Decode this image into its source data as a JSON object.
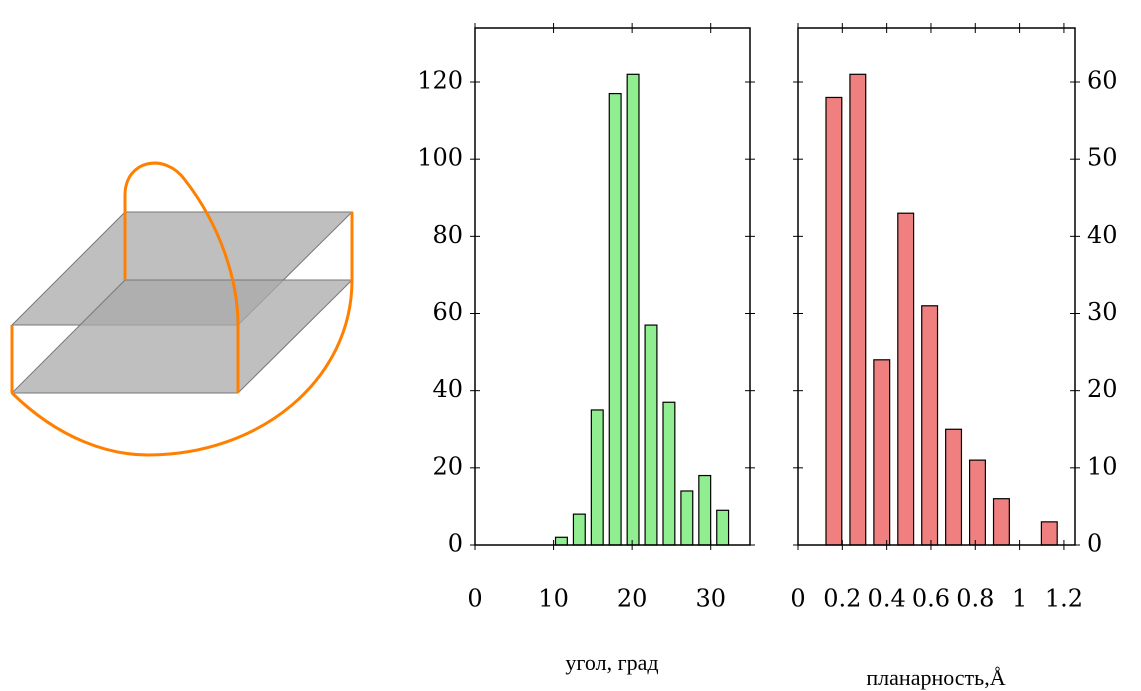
{
  "chart_data": [
    {
      "type": "histogram",
      "x_label": "угол, град",
      "bins": [
        9.86,
        12.14,
        14.42,
        16.7,
        18.98,
        21.26,
        23.54,
        25.82,
        28.1,
        30.38,
        32.66
      ],
      "values": [
        2,
        8,
        35,
        117,
        122,
        57,
        37,
        14,
        18,
        9
      ],
      "color": "#90ee90",
      "xlim": [
        0,
        35
      ],
      "ylim": [
        0,
        134
      ],
      "xticks": [
        0,
        10,
        20,
        30
      ],
      "yticks": [
        0,
        20,
        40,
        60,
        80,
        100,
        120
      ],
      "y_axis_side": "left"
    },
    {
      "type": "histogram",
      "x_label": "планарность,Å",
      "bins": [
        0.108,
        0.216,
        0.324,
        0.432,
        0.54,
        0.648,
        0.756,
        0.864,
        0.972,
        1.08,
        1.188
      ],
      "values": [
        58,
        61,
        24,
        43,
        31,
        15,
        11,
        6,
        0,
        3
      ],
      "color": "#f08080",
      "xlim": [
        0,
        1.25
      ],
      "ylim": [
        0,
        67
      ],
      "xticks": [
        0,
        0.2,
        0.4,
        0.6,
        0.8,
        1,
        1.2
      ],
      "yticks": [
        0,
        10,
        20,
        30,
        40,
        50,
        60
      ],
      "y_axis_side": "right"
    }
  ]
}
